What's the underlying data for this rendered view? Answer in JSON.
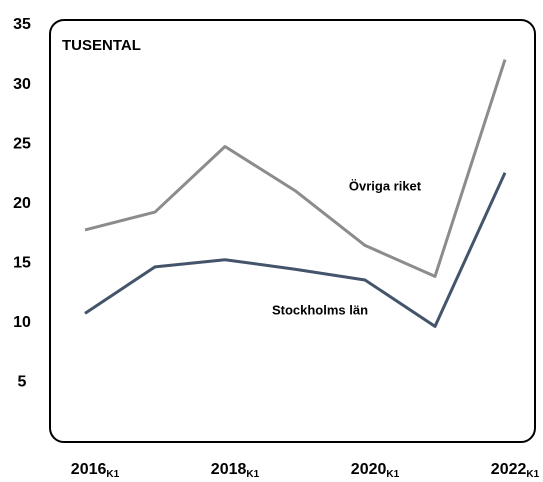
{
  "chart_data": {
    "type": "line",
    "unit_label": "TUSENTAL",
    "categories": [
      "2016",
      null,
      "2018",
      null,
      "2020",
      null,
      "2022"
    ],
    "category_subscript": "K1",
    "series": [
      {
        "name": "Övriga riket",
        "color": "#8c8c8c",
        "values": [
          17.8,
          19.3,
          24.8,
          21.1,
          16.5,
          13.9,
          32.1
        ]
      },
      {
        "name": "Stockholms län",
        "color": "#44546a",
        "values": [
          10.8,
          14.7,
          15.3,
          14.5,
          13.6,
          9.7,
          22.6
        ]
      }
    ],
    "ylim": [
      0,
      35
    ],
    "yticks": [
      5,
      10,
      15,
      20,
      25,
      30,
      35
    ],
    "grid": false
  }
}
